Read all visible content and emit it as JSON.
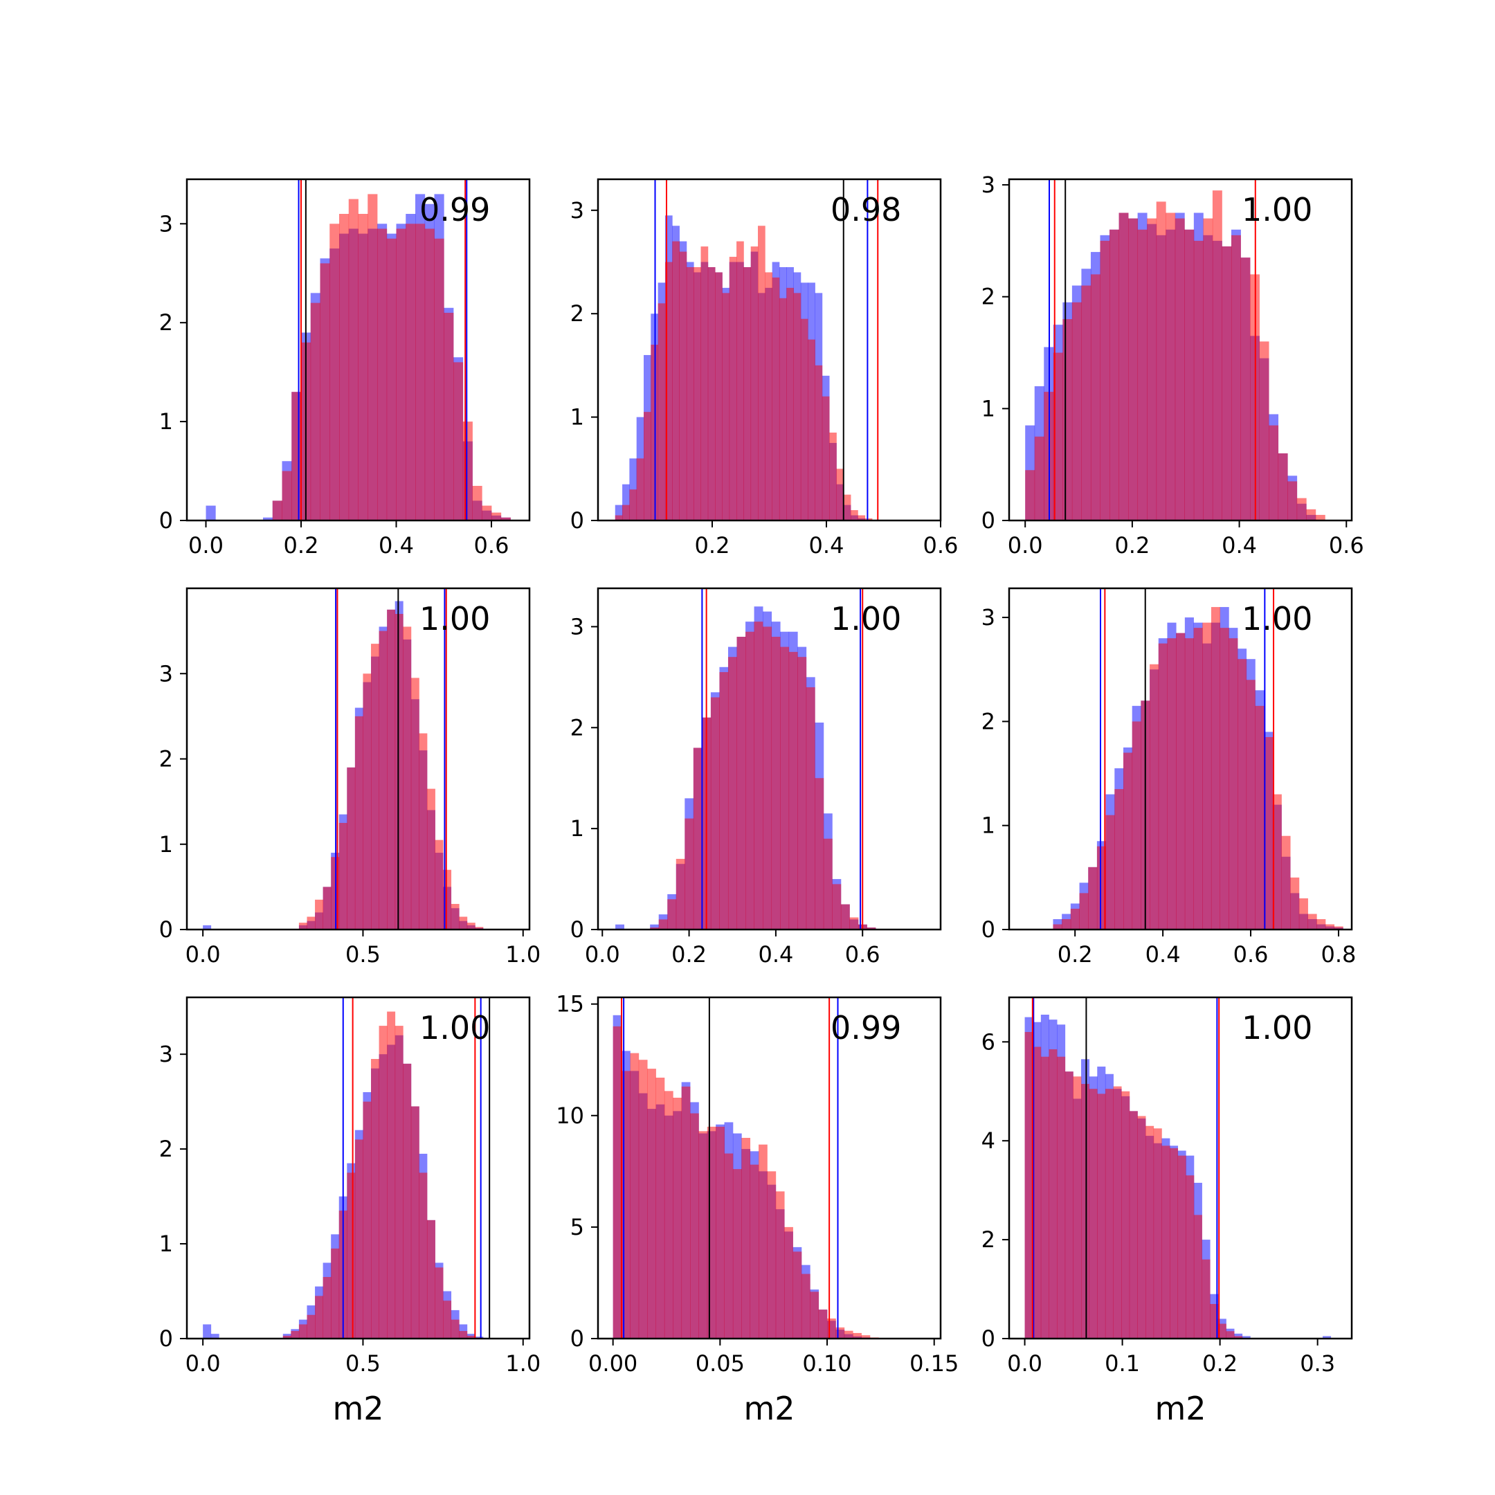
{
  "figure": {
    "colors": {
      "series_a": "#0000ff",
      "series_b": "#ff0000",
      "reference_line": "#000000",
      "fill_opacity": 0.5
    }
  },
  "chart_data": [
    {
      "type": "histogram",
      "score": "0.99",
      "xlabel": "",
      "xlim": [
        -0.04,
        0.68
      ],
      "ylim": [
        0,
        3.45
      ],
      "xticks": [
        0.0,
        0.2,
        0.4,
        0.6
      ],
      "xtick_labels": [
        "0.0",
        "0.2",
        "0.4",
        "0.6"
      ],
      "yticks": [
        0,
        1,
        2,
        3
      ],
      "ytick_labels": [
        "0",
        "1",
        "2",
        "3"
      ],
      "bin_start": 0.0,
      "bin_width": 0.02,
      "series": [
        {
          "values": [
            0.15,
            0,
            0,
            0,
            0,
            0,
            0.03,
            0.2,
            0.6,
            1.3,
            1.9,
            2.3,
            2.65,
            2.75,
            2.9,
            2.95,
            2.9,
            2.95,
            3.0,
            2.9,
            3.0,
            3.1,
            3.3,
            3.2,
            3.3,
            2.15,
            1.65,
            0.8,
            0.2,
            0.1,
            0.05,
            0.03,
            0.0
          ]
        },
        {
          "values": [
            0,
            0,
            0,
            0,
            0,
            0,
            0,
            0.2,
            0.5,
            1.3,
            1.8,
            2.2,
            2.6,
            3.0,
            3.1,
            3.25,
            3.1,
            3.3,
            2.95,
            2.85,
            2.95,
            3.0,
            3.0,
            2.95,
            2.85,
            2.1,
            1.6,
            1.0,
            0.35,
            0.15,
            0.08,
            0.03,
            0.0
          ]
        }
      ],
      "lines": {
        "series_a": [
          0.195,
          0.548
        ],
        "series_b": [
          0.2,
          0.545
        ],
        "reference": [
          0.21
        ]
      }
    },
    {
      "type": "histogram",
      "score": "0.98",
      "xlabel": "",
      "xlim": [
        0.0,
        0.6
      ],
      "ylim": [
        0,
        3.3
      ],
      "xticks": [
        0.2,
        0.4,
        0.6
      ],
      "xtick_labels": [
        "0.2",
        "0.4",
        "0.6"
      ],
      "yticks": [
        0,
        1,
        2,
        3
      ],
      "ytick_labels": [
        "0",
        "1",
        "2",
        "3"
      ],
      "bin_start": 0.03,
      "bin_width": 0.0125,
      "series": [
        {
          "values": [
            0.15,
            0.35,
            0.6,
            1.0,
            1.6,
            2.0,
            2.3,
            2.95,
            2.85,
            2.7,
            2.5,
            2.4,
            2.5,
            2.45,
            2.4,
            2.25,
            2.5,
            2.5,
            2.45,
            2.6,
            2.2,
            2.25,
            2.5,
            2.45,
            2.45,
            2.4,
            2.3,
            2.3,
            2.2,
            1.4,
            0.75,
            0.35,
            0.15,
            0.05,
            0.02,
            0.0
          ]
        },
        {
          "values": [
            0.05,
            0.15,
            0.3,
            0.6,
            1.05,
            1.7,
            2.1,
            2.5,
            2.7,
            2.6,
            2.45,
            2.45,
            2.65,
            2.45,
            2.4,
            2.2,
            2.55,
            2.7,
            2.45,
            2.65,
            2.85,
            2.4,
            2.35,
            2.15,
            2.25,
            2.2,
            1.95,
            1.75,
            1.5,
            1.2,
            0.85,
            0.5,
            0.25,
            0.1,
            0.05,
            0.02
          ]
        }
      ],
      "lines": {
        "series_a": [
          0.1,
          0.472
        ],
        "series_b": [
          0.12,
          0.49
        ],
        "reference": [
          0.43
        ]
      }
    },
    {
      "type": "histogram",
      "score": "1.00",
      "xlabel": "",
      "xlim": [
        -0.03,
        0.61
      ],
      "ylim": [
        0,
        3.05
      ],
      "xticks": [
        0.0,
        0.2,
        0.4,
        0.6
      ],
      "xtick_labels": [
        "0.0",
        "0.2",
        "0.4",
        "0.6"
      ],
      "yticks": [
        0,
        1,
        2,
        3
      ],
      "ytick_labels": [
        "0",
        "1",
        "2",
        "3"
      ],
      "bin_start": 0.0,
      "bin_width": 0.0175,
      "series": [
        {
          "values": [
            0.85,
            1.2,
            1.55,
            1.75,
            1.95,
            2.1,
            2.25,
            2.4,
            2.55,
            2.6,
            2.75,
            2.7,
            2.75,
            2.65,
            2.55,
            2.6,
            2.75,
            2.6,
            2.75,
            2.55,
            2.5,
            2.45,
            2.6,
            2.35,
            1.65,
            1.45,
            0.95,
            0.6,
            0.4,
            0.15,
            0.05,
            0.0
          ]
        },
        {
          "values": [
            0.45,
            0.75,
            1.15,
            1.5,
            1.8,
            1.95,
            2.1,
            2.2,
            2.5,
            2.6,
            2.75,
            2.7,
            2.6,
            2.7,
            2.85,
            2.75,
            2.7,
            2.6,
            2.5,
            2.7,
            2.95,
            2.45,
            2.55,
            2.35,
            2.2,
            1.6,
            0.85,
            0.6,
            0.35,
            0.2,
            0.1,
            0.05
          ]
        }
      ],
      "lines": {
        "series_a": [
          0.045
        ],
        "series_b": [
          0.055,
          0.43
        ],
        "reference": [
          0.075
        ]
      }
    },
    {
      "type": "histogram",
      "score": "1.00",
      "xlabel": "",
      "xlim": [
        -0.05,
        1.02
      ],
      "ylim": [
        0,
        4.0
      ],
      "xticks": [
        0.0,
        0.5,
        1.0
      ],
      "xtick_labels": [
        "0.0",
        "0.5",
        "1.0"
      ],
      "yticks": [
        0,
        1,
        2,
        3
      ],
      "ytick_labels": [
        "0",
        "1",
        "2",
        "3"
      ],
      "bin_start": 0.0,
      "bin_width": 0.025,
      "series": [
        {
          "values": [
            0.05,
            0,
            0,
            0,
            0,
            0,
            0,
            0,
            0,
            0,
            0,
            0,
            0.05,
            0.1,
            0.2,
            0.5,
            0.9,
            1.35,
            1.9,
            2.6,
            2.9,
            3.2,
            3.55,
            3.75,
            3.85,
            3.4,
            2.7,
            2.1,
            1.4,
            0.9,
            0.5,
            0.25,
            0.1,
            0.05,
            0.02,
            0.0
          ]
        },
        {
          "values": [
            0,
            0,
            0,
            0,
            0,
            0,
            0,
            0,
            0,
            0,
            0,
            0,
            0.08,
            0.15,
            0.35,
            0.5,
            0.85,
            1.25,
            1.9,
            2.5,
            3.0,
            3.35,
            3.5,
            3.75,
            3.7,
            3.55,
            2.95,
            2.3,
            1.65,
            1.05,
            0.7,
            0.3,
            0.15,
            0.08,
            0.03,
            0.0
          ]
        }
      ],
      "lines": {
        "series_a": [
          0.415,
          0.755
        ],
        "series_b": [
          0.42,
          0.76
        ],
        "reference": [
          0.61
        ]
      }
    },
    {
      "type": "histogram",
      "score": "1.00",
      "xlabel": "",
      "xlim": [
        -0.01,
        0.78
      ],
      "ylim": [
        0,
        3.38
      ],
      "xticks": [
        0.0,
        0.2,
        0.4,
        0.6
      ],
      "xtick_labels": [
        "0.0",
        "0.2",
        "0.4",
        "0.6"
      ],
      "yticks": [
        0,
        1,
        2,
        3
      ],
      "ytick_labels": [
        "0",
        "1",
        "2",
        "3"
      ],
      "bin_start": 0.03,
      "bin_width": 0.02,
      "series": [
        {
          "values": [
            0.05,
            0,
            0,
            0,
            0.05,
            0.15,
            0.35,
            0.65,
            1.3,
            1.8,
            2.1,
            2.35,
            2.6,
            2.8,
            2.9,
            3.05,
            3.2,
            3.15,
            3.05,
            2.95,
            2.95,
            2.8,
            2.5,
            2.05,
            1.15,
            0.5,
            0.25,
            0.1,
            0.05,
            0.02,
            0.0,
            0.0,
            0.0,
            0.0,
            0.0,
            0.0
          ]
        },
        {
          "values": [
            0,
            0,
            0,
            0,
            0.02,
            0.1,
            0.3,
            0.7,
            1.1,
            1.8,
            2.1,
            2.3,
            2.55,
            2.7,
            2.9,
            2.95,
            3.05,
            3.0,
            2.9,
            2.8,
            2.75,
            2.7,
            2.4,
            1.5,
            0.9,
            0.45,
            0.25,
            0.12,
            0.05,
            0.02,
            0.0,
            0.0,
            0.0,
            0.0,
            0.0,
            0.0
          ]
        }
      ],
      "lines": {
        "series_a": [
          0.23,
          0.595
        ],
        "series_b": [
          0.24,
          0.6
        ],
        "reference": []
      }
    },
    {
      "type": "histogram",
      "score": "1.00",
      "xlabel": "",
      "xlim": [
        0.05,
        0.83
      ],
      "ylim": [
        0,
        3.28
      ],
      "xticks": [
        0.2,
        0.4,
        0.6,
        0.8
      ],
      "xtick_labels": [
        "0.2",
        "0.4",
        "0.6",
        "0.8"
      ],
      "yticks": [
        0,
        1,
        2,
        3
      ],
      "ytick_labels": [
        "0",
        "1",
        "2",
        "3"
      ],
      "bin_start": 0.15,
      "bin_width": 0.02,
      "series": [
        {
          "values": [
            0.1,
            0.15,
            0.25,
            0.45,
            0.6,
            0.85,
            1.3,
            1.55,
            1.75,
            2.15,
            2.2,
            2.5,
            2.8,
            2.95,
            2.85,
            3.0,
            2.95,
            2.75,
            2.95,
            3.1,
            2.9,
            2.7,
            2.6,
            2.3,
            1.9,
            1.2,
            0.7,
            0.35,
            0.15,
            0.1,
            0.05,
            0.03,
            0.02
          ]
        },
        {
          "values": [
            0.05,
            0.1,
            0.2,
            0.35,
            0.6,
            0.8,
            1.1,
            1.35,
            1.7,
            2.0,
            2.2,
            2.55,
            2.75,
            2.8,
            2.85,
            2.8,
            2.9,
            2.95,
            3.1,
            2.9,
            2.8,
            2.6,
            2.4,
            2.15,
            1.85,
            1.3,
            0.9,
            0.5,
            0.3,
            0.15,
            0.1,
            0.05,
            0.03
          ]
        }
      ],
      "lines": {
        "series_a": [
          0.258,
          0.632
        ],
        "series_b": [
          0.268,
          0.652
        ],
        "reference": [
          0.36
        ]
      }
    },
    {
      "type": "histogram",
      "score": "1.00",
      "xlabel": "m2",
      "xlim": [
        -0.05,
        1.02
      ],
      "ylim": [
        0,
        3.6
      ],
      "xticks": [
        0.0,
        0.5,
        1.0
      ],
      "xtick_labels": [
        "0.0",
        "0.5",
        "1.0"
      ],
      "yticks": [
        0,
        1,
        2,
        3
      ],
      "ytick_labels": [
        "0",
        "1",
        "2",
        "3"
      ],
      "bin_start": 0.0,
      "bin_width": 0.025,
      "series": [
        {
          "values": [
            0.15,
            0.05,
            0,
            0,
            0,
            0,
            0,
            0,
            0,
            0,
            0.05,
            0.1,
            0.2,
            0.35,
            0.55,
            0.8,
            1.1,
            1.5,
            1.85,
            2.2,
            2.6,
            2.85,
            3.0,
            3.1,
            3.2,
            2.9,
            2.45,
            1.95,
            1.25,
            0.8,
            0.5,
            0.3,
            0.15,
            0.05,
            0.02,
            0.0
          ]
        },
        {
          "values": [
            0,
            0,
            0,
            0,
            0,
            0,
            0,
            0,
            0,
            0,
            0.03,
            0.08,
            0.15,
            0.25,
            0.45,
            0.65,
            0.95,
            1.35,
            1.75,
            2.1,
            2.5,
            2.95,
            3.3,
            3.45,
            3.3,
            2.9,
            2.45,
            1.75,
            1.25,
            0.75,
            0.4,
            0.2,
            0.08,
            0.03,
            0.01,
            0.0
          ]
        }
      ],
      "lines": {
        "series_a": [
          0.438,
          0.868
        ],
        "series_b": [
          0.468,
          0.85
        ],
        "reference": [
          0.895
        ]
      }
    },
    {
      "type": "histogram",
      "score": "0.99",
      "xlabel": "m2",
      "xlim": [
        -0.007,
        0.153
      ],
      "ylim": [
        0,
        15.3
      ],
      "xticks": [
        0.0,
        0.05,
        0.1,
        0.15
      ],
      "xtick_labels": [
        "0.00",
        "0.05",
        "0.10",
        "0.15"
      ],
      "yticks": [
        0,
        5,
        10,
        15
      ],
      "ytick_labels": [
        "0",
        "5",
        "10",
        "15"
      ],
      "bin_start": 0.0,
      "bin_width": 0.004,
      "series": [
        {
          "values": [
            14.5,
            12.9,
            12.0,
            11.0,
            10.3,
            10.5,
            10.0,
            10.2,
            11.5,
            10.6,
            9.2,
            9.3,
            9.6,
            9.7,
            9.2,
            8.5,
            8.4,
            7.5,
            6.9,
            5.8,
            4.8,
            4.1,
            3.3,
            2.2,
            1.3,
            0.8,
            0.4,
            0.2,
            0.1,
            0.05,
            0.0
          ]
        },
        {
          "values": [
            14.0,
            12.0,
            12.8,
            12.5,
            12.1,
            11.7,
            11.1,
            10.8,
            11.3,
            10.1,
            9.3,
            9.5,
            9.5,
            8.3,
            7.6,
            9.0,
            7.8,
            8.7,
            7.5,
            6.6,
            5.0,
            3.9,
            2.9,
            2.1,
            1.3,
            0.9,
            0.5,
            0.35,
            0.25,
            0.15,
            0.05
          ]
        }
      ],
      "lines": {
        "series_a": [
          0.005,
          0.105
        ],
        "series_b": [
          0.004,
          0.101
        ],
        "reference": [
          0.045
        ]
      }
    },
    {
      "type": "histogram",
      "score": "1.00",
      "xlabel": "m2",
      "xlim": [
        -0.016,
        0.335
      ],
      "ylim": [
        0,
        6.9
      ],
      "xticks": [
        0.0,
        0.1,
        0.2,
        0.3
      ],
      "xtick_labels": [
        "0.0",
        "0.1",
        "0.2",
        "0.3"
      ],
      "yticks": [
        0,
        2,
        4,
        6
      ],
      "ytick_labels": [
        "0",
        "2",
        "4",
        "6"
      ],
      "bin_start": 0.0,
      "bin_width": 0.00825,
      "series": [
        {
          "values": [
            6.5,
            6.4,
            6.55,
            6.45,
            6.35,
            5.4,
            4.85,
            5.65,
            5.3,
            5.5,
            5.35,
            5.05,
            4.9,
            4.6,
            4.45,
            4.1,
            3.95,
            4.05,
            3.9,
            3.8,
            3.7,
            3.15,
            2.0,
            0.9,
            0.4,
            0.2,
            0.1,
            0.05,
            0,
            0,
            0,
            0,
            0,
            0,
            0,
            0,
            0,
            0.05
          ]
        },
        {
          "values": [
            6.2,
            5.9,
            5.7,
            5.85,
            5.7,
            5.4,
            5.3,
            5.15,
            5.05,
            4.95,
            5.05,
            5.1,
            5.0,
            4.6,
            4.5,
            4.3,
            4.25,
            3.9,
            3.85,
            3.7,
            3.3,
            2.5,
            1.6,
            0.7,
            0.3,
            0.15,
            0.05,
            0.0
          ]
        }
      ],
      "lines": {
        "series_a": [
          0.009,
          0.197
        ],
        "series_b": [
          0.008,
          0.199
        ],
        "reference": [
          0.063
        ]
      }
    }
  ]
}
